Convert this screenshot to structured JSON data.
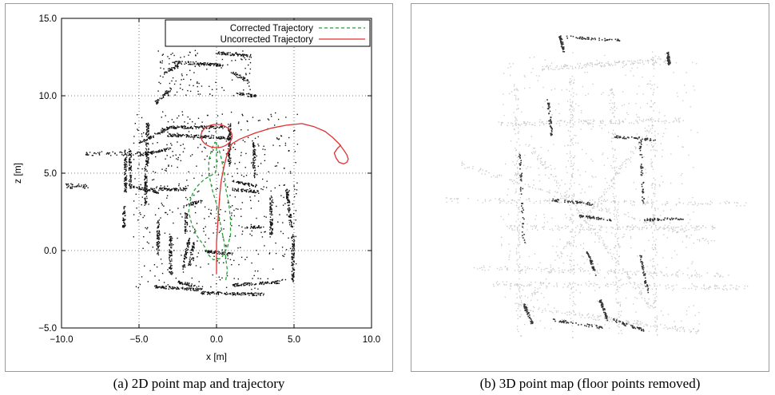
{
  "chart_data": [
    {
      "type": "scatter",
      "title": "",
      "xlabel": "x [m]",
      "ylabel": "z [m]",
      "xlim": [
        -10.0,
        10.0
      ],
      "ylim": [
        -5.0,
        15.0
      ],
      "x_ticks": [
        "−10.0",
        "−5.0",
        "0.0",
        "5.0",
        "10.0"
      ],
      "x_tick_values": [
        -10,
        -5,
        0,
        5,
        10
      ],
      "y_ticks": [
        "−5.0",
        "0.0",
        "5.0",
        "10.0",
        "15.0"
      ],
      "y_tick_values": [
        -5,
        0,
        5,
        10,
        15
      ],
      "grid": true,
      "legend_position": "top-right",
      "series": [
        {
          "name": "Corrected Trajectory",
          "style": "dashed",
          "color": "#22a033",
          "x": [
            0.0,
            0.0,
            0.0,
            0.0,
            -0.1,
            -0.8,
            -1.2,
            -1.5,
            -1.7,
            -1.8,
            -1.6,
            -1.3,
            -0.8,
            -0.5,
            -0.2,
            0.3,
            0.7,
            0.9,
            0.9,
            0.8,
            0.6,
            0.5,
            0.3,
            0.1,
            -0.1,
            -0.3,
            -0.5,
            -0.5,
            -0.3,
            0.0,
            0.3,
            0.5,
            0.6,
            0.7,
            0.6
          ],
          "y": [
            7.0,
            6.5,
            5.8,
            5.3,
            5.0,
            4.6,
            4.2,
            3.8,
            3.2,
            2.5,
            1.7,
            1.0,
            0.3,
            -0.3,
            -0.6,
            -0.5,
            0.2,
            1.0,
            2.0,
            3.0,
            4.0,
            5.0,
            6.0,
            6.8,
            7.0,
            6.6,
            5.8,
            5.0,
            4.0,
            3.0,
            1.5,
            0.5,
            -0.5,
            -1.3,
            -1.9
          ]
        },
        {
          "name": "Uncorrected Trajectory",
          "style": "solid",
          "color": "#e03030",
          "x": [
            0.0,
            0.0,
            0.1,
            0.2,
            0.3,
            0.5,
            0.7,
            1.0,
            1.5,
            2.5,
            3.5,
            4.5,
            5.5,
            6.3,
            7.0,
            7.5,
            7.9,
            8.2,
            8.4,
            8.5,
            8.4,
            8.2,
            7.9,
            7.7,
            7.6,
            7.8,
            8.0,
            7.9
          ],
          "y": [
            -1.5,
            0.5,
            2.0,
            3.5,
            4.5,
            5.5,
            6.3,
            6.9,
            7.2,
            7.6,
            7.9,
            8.1,
            8.2,
            8.0,
            7.7,
            7.3,
            6.9,
            6.5,
            6.2,
            5.9,
            5.7,
            5.6,
            5.7,
            6.0,
            6.3,
            6.6,
            6.8,
            6.9
          ]
        }
      ],
      "highlight_ellipse": {
        "center": [
          0.0,
          7.4
        ],
        "rx": 1.0,
        "ry": 0.75,
        "color": "#e03030"
      }
    },
    {
      "type": "scatter",
      "title": "",
      "description_3d": true
    }
  ],
  "captions": {
    "a": "(a)  2D point map and trajectory",
    "b": "(b)  3D point map (floor points removed)"
  },
  "colors": {
    "map_points": "#111111",
    "map3d_light": "#c9c9c9",
    "map3d_dark": "#333333",
    "grid": "#555555"
  }
}
